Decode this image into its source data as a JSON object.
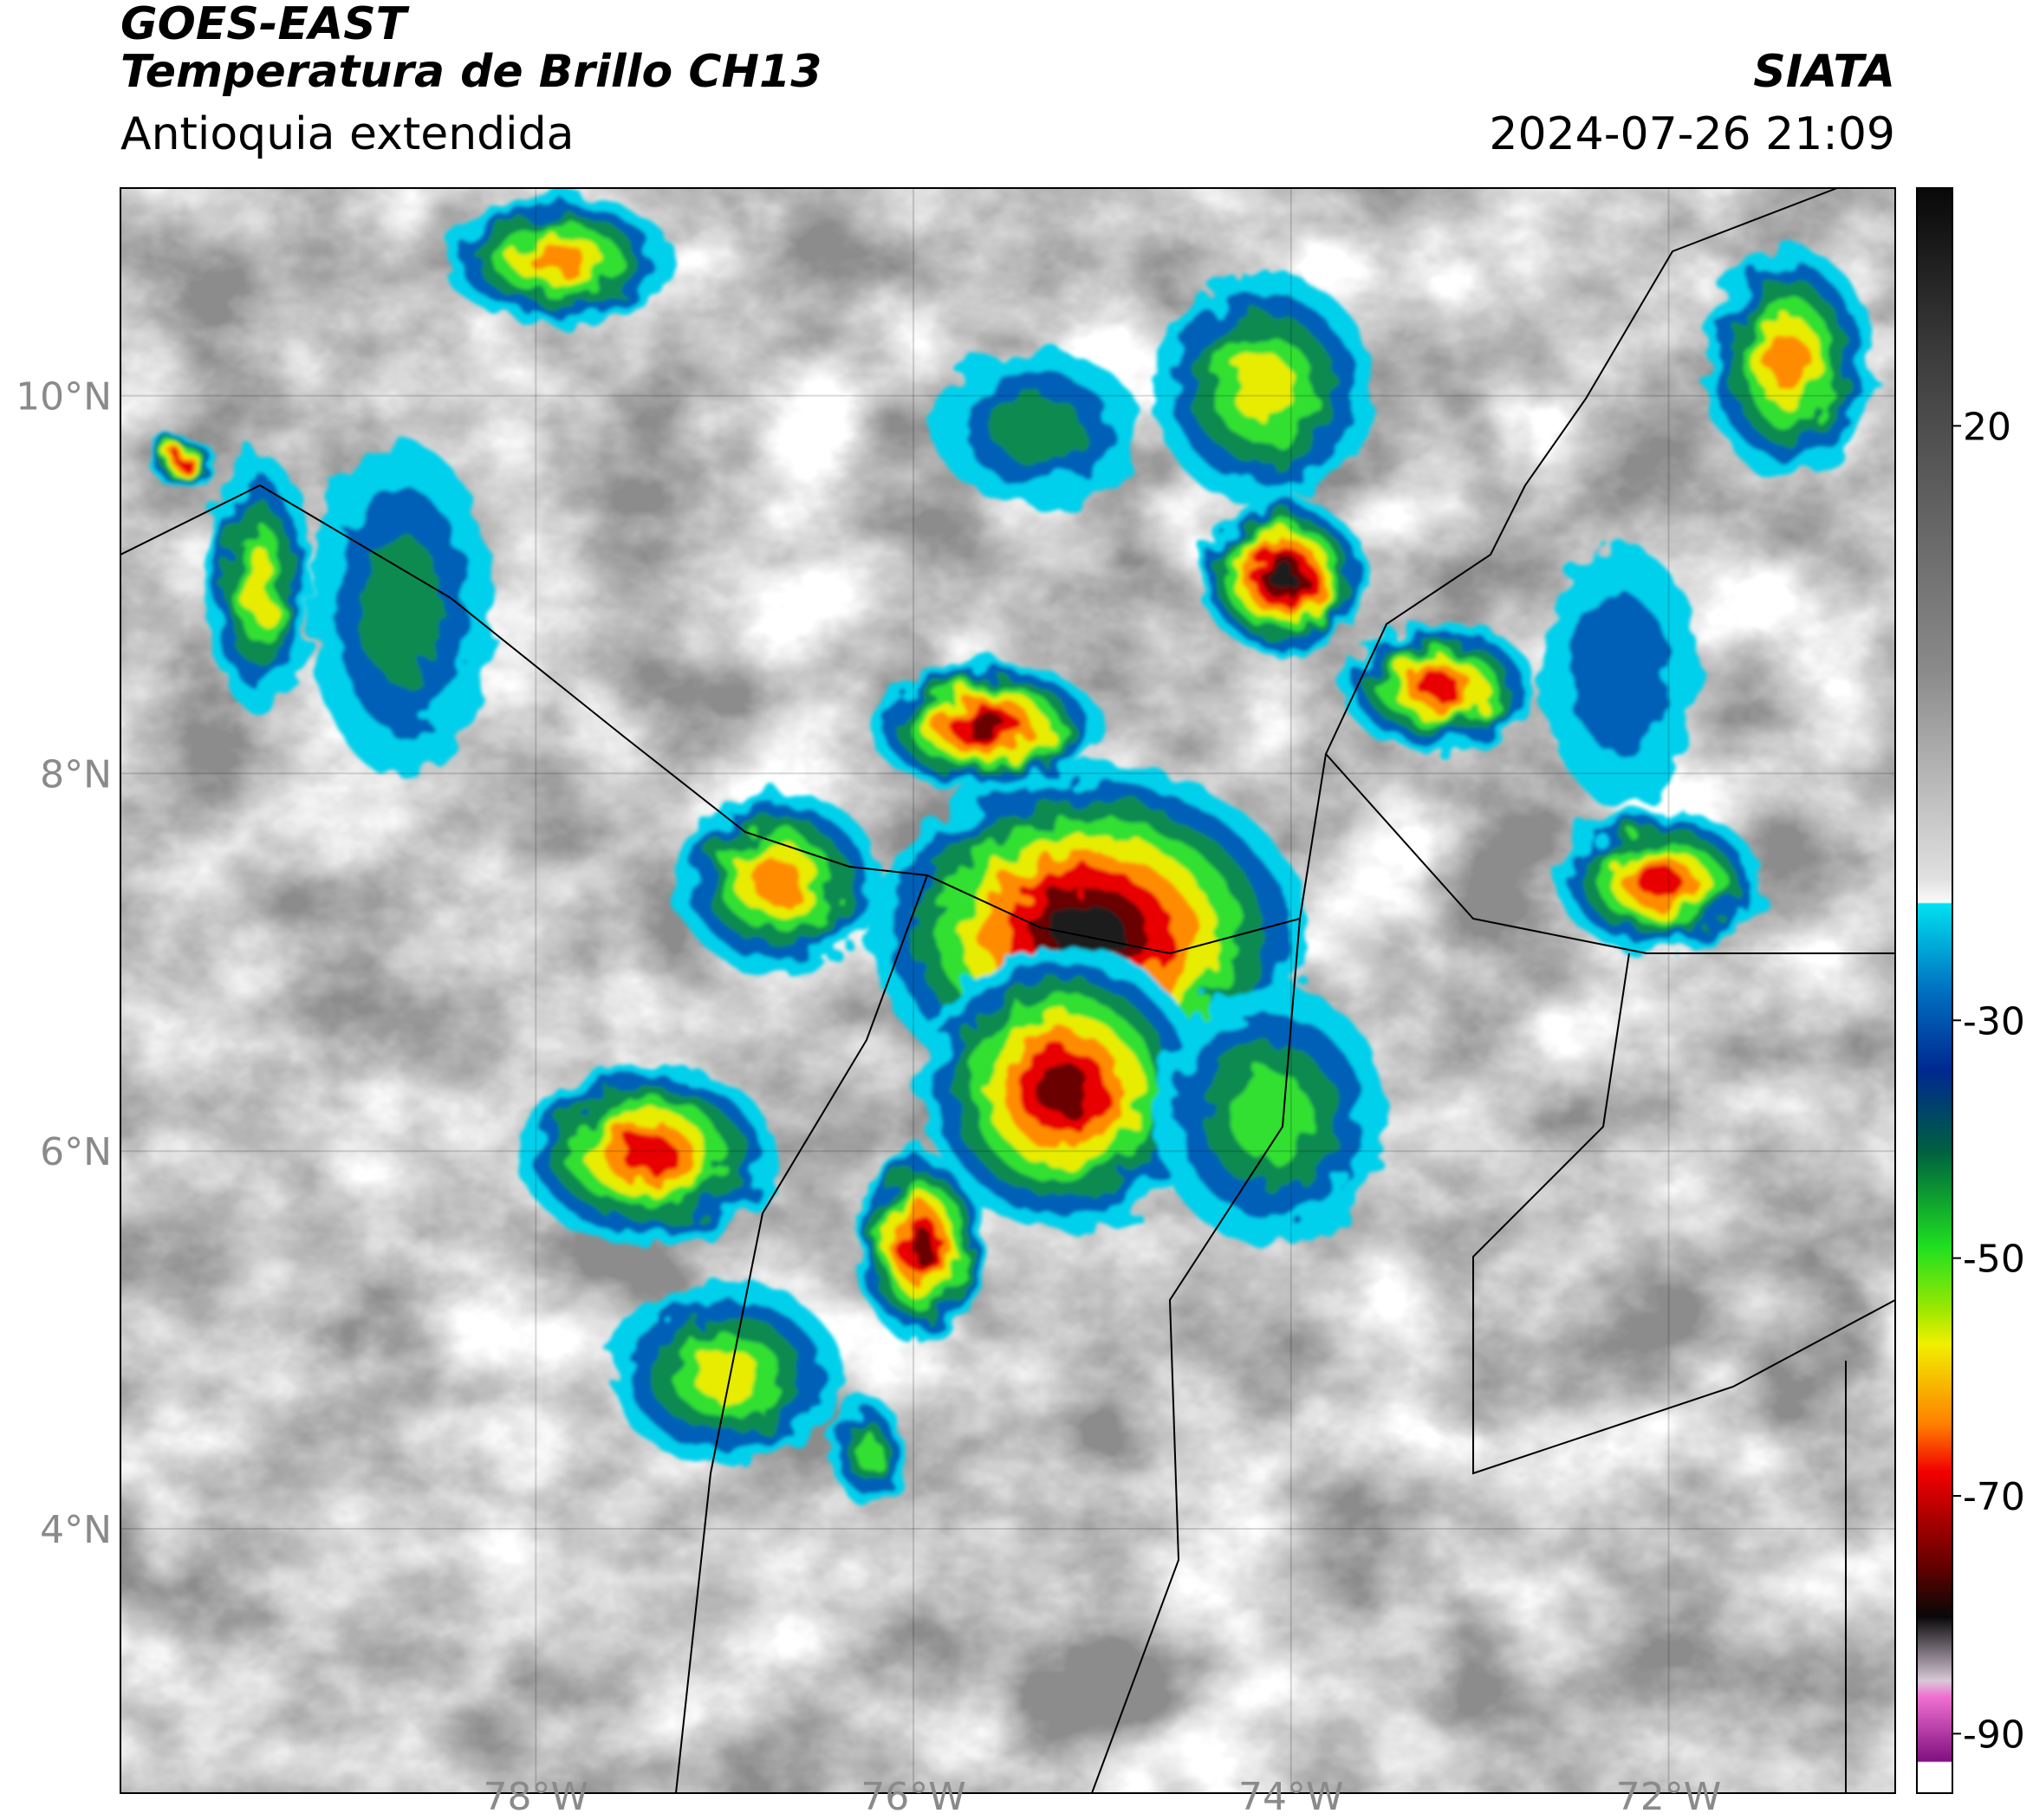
{
  "header": {
    "satellite": "GOES-EAST",
    "product": "Temperatura de Brillo CH13",
    "region": "Antioquia extendida",
    "agency": "SIATA",
    "datetime": "2024-07-26 21:09"
  },
  "map": {
    "xlim": [
      -80.2,
      -70.8
    ],
    "ylim": [
      2.6,
      11.1
    ],
    "xticks": [
      {
        "value": -78,
        "label": "78°W"
      },
      {
        "value": -76,
        "label": "76°W"
      },
      {
        "value": -74,
        "label": "74°W"
      },
      {
        "value": -72,
        "label": "72°W"
      }
    ],
    "yticks": [
      {
        "value": 4,
        "label": "4°N"
      },
      {
        "value": 6,
        "label": "6°N"
      },
      {
        "value": 8,
        "label": "8°N"
      },
      {
        "value": 10,
        "label": "10°N"
      }
    ]
  },
  "colorbar": {
    "lim": [
      -95,
      40
    ],
    "ticks": [
      20,
      -30,
      -50,
      -70,
      -90
    ]
  }
}
